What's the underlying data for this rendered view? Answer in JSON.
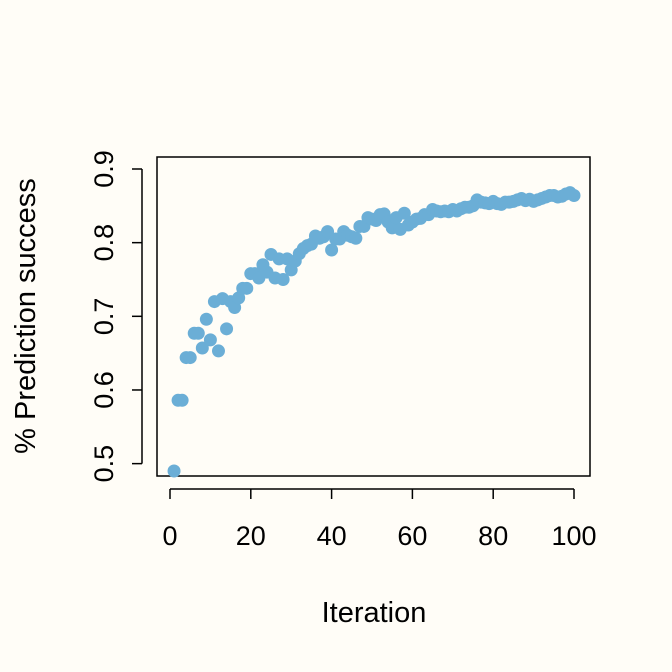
{
  "colors": {
    "background": "#fffdf7",
    "point": "#6baed6",
    "axis": "#000000"
  },
  "chart_data": {
    "type": "scatter",
    "xlabel": "Iteration",
    "ylabel": "% Prediction success",
    "xlim": [
      0,
      100
    ],
    "ylim": [
      0.49,
      0.9
    ],
    "xticks": [
      0,
      20,
      40,
      60,
      80,
      100
    ],
    "yticks": [
      0.5,
      0.6,
      0.7,
      0.8,
      0.9
    ],
    "grid": false,
    "legend": "none",
    "x": [
      1,
      2,
      3,
      4,
      5,
      6,
      7,
      8,
      9,
      10,
      11,
      12,
      13,
      14,
      15,
      16,
      17,
      18,
      19,
      20,
      21,
      22,
      23,
      24,
      25,
      26,
      27,
      28,
      29,
      30,
      31,
      32,
      33,
      34,
      35,
      36,
      37,
      38,
      39,
      40,
      41,
      42,
      43,
      44,
      45,
      46,
      47,
      48,
      49,
      50,
      51,
      52,
      53,
      54,
      55,
      56,
      57,
      58,
      59,
      60,
      61,
      62,
      63,
      64,
      65,
      66,
      67,
      68,
      69,
      70,
      71,
      72,
      73,
      74,
      75,
      76,
      77,
      78,
      79,
      80,
      81,
      82,
      83,
      84,
      85,
      86,
      87,
      88,
      89,
      90,
      91,
      92,
      93,
      94,
      95,
      96,
      97,
      98,
      99,
      100
    ],
    "y": [
      0.49,
      0.586,
      0.586,
      0.644,
      0.644,
      0.677,
      0.677,
      0.657,
      0.696,
      0.668,
      0.72,
      0.653,
      0.724,
      0.683,
      0.72,
      0.712,
      0.725,
      0.738,
      0.738,
      0.758,
      0.758,
      0.752,
      0.77,
      0.76,
      0.784,
      0.752,
      0.778,
      0.75,
      0.778,
      0.763,
      0.775,
      0.785,
      0.792,
      0.796,
      0.798,
      0.809,
      0.806,
      0.808,
      0.815,
      0.79,
      0.805,
      0.805,
      0.815,
      0.81,
      0.808,
      0.806,
      0.822,
      0.822,
      0.834,
      0.832,
      0.83,
      0.838,
      0.839,
      0.828,
      0.82,
      0.834,
      0.818,
      0.84,
      0.824,
      0.828,
      0.832,
      0.833,
      0.838,
      0.838,
      0.845,
      0.843,
      0.842,
      0.843,
      0.842,
      0.845,
      0.843,
      0.846,
      0.848,
      0.848,
      0.85,
      0.858,
      0.855,
      0.854,
      0.853,
      0.856,
      0.853,
      0.852,
      0.855,
      0.855,
      0.856,
      0.858,
      0.86,
      0.857,
      0.859,
      0.856,
      0.858,
      0.86,
      0.862,
      0.864,
      0.864,
      0.862,
      0.863,
      0.866,
      0.868,
      0.864
    ]
  }
}
